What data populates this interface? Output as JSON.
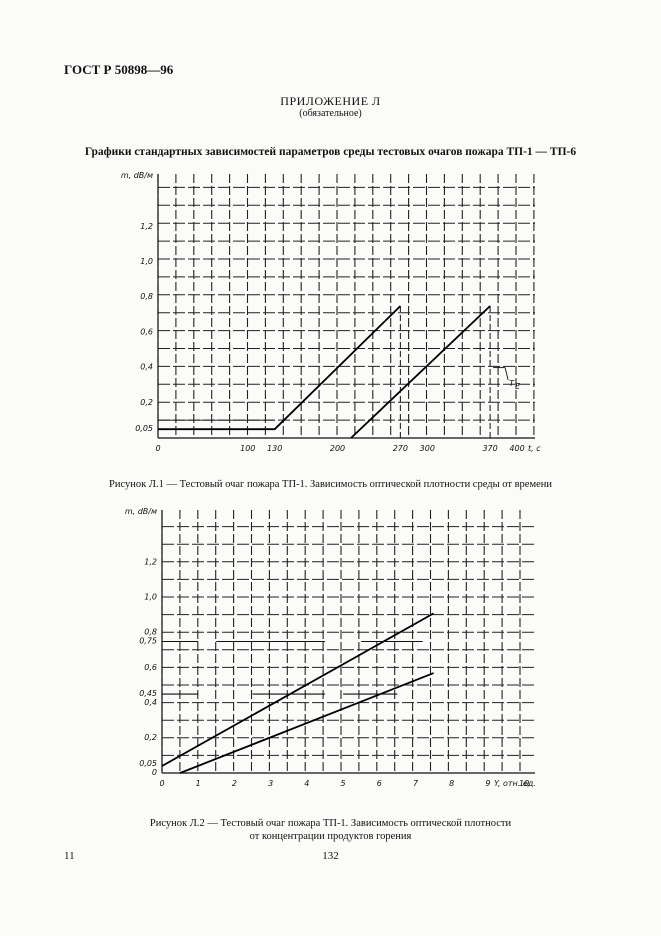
{
  "header": {
    "code": "ГОСТ Р 50898—96"
  },
  "appendix": {
    "title": "ПРИЛОЖЕНИЕ Л",
    "subtitle": "(обязательное)"
  },
  "main_title": "Графики стандартных зависимостей параметров среды тестовых очагов пожара ТП-1 — ТП-6",
  "figure1": {
    "caption": "Рисунок Л.1 — Тестовый очаг пожара ТП-1. Зависимость оптической плотности среды от времени",
    "annotation": "T_E"
  },
  "figure2": {
    "caption_line1": "Рисунок Л.2 — Тестовый очаг пожара ТП-1. Зависимость оптической плотности",
    "caption_line2": "от концентрации продуктов горения"
  },
  "page": {
    "left": "11",
    "center": "132"
  },
  "chart_data": [
    {
      "type": "line",
      "title": "",
      "ylabel": "m, dB/м",
      "xlabel": "t, c",
      "x_ticks": [
        "0",
        "100",
        "130",
        "200",
        "270",
        "300",
        "370",
        "400"
      ],
      "x_tick_values": [
        0,
        100,
        130,
        200,
        270,
        300,
        370,
        400
      ],
      "y_ticks": [
        "0,05",
        "0,2",
        "0,4",
        "0,6",
        "0,8",
        "1,0",
        "1,2"
      ],
      "y_tick_values": [
        0.05,
        0.2,
        0.4,
        0.6,
        0.8,
        1.0,
        1.2
      ],
      "xlim": [
        0,
        420
      ],
      "ylim": [
        0,
        1.5
      ],
      "grid": true,
      "series": [
        {
          "x": [
            0,
            130,
            270
          ],
          "y": [
            0.05,
            0.05,
            0.75
          ]
        },
        {
          "x": [
            215,
            370
          ],
          "y": [
            0,
            0.75
          ]
        }
      ]
    },
    {
      "type": "line",
      "title": "",
      "ylabel": "m, dB/м",
      "xlabel": "Y, отн. ед.",
      "x_ticks": [
        "0",
        "1",
        "2",
        "3",
        "4",
        "5",
        "6",
        "7",
        "8",
        "9",
        "10"
      ],
      "x_tick_values": [
        0,
        1,
        2,
        3,
        4,
        5,
        6,
        7,
        8,
        9,
        10
      ],
      "y_ticks": [
        "0",
        "0,05",
        "0,2",
        "0,4",
        "0,45",
        "0,6",
        "0,75",
        "0,8",
        "1,0",
        "1,2"
      ],
      "y_tick_values": [
        0,
        0.05,
        0.2,
        0.4,
        0.45,
        0.6,
        0.75,
        0.8,
        1.0,
        1.2
      ],
      "xlim": [
        0,
        10.3
      ],
      "ylim": [
        0,
        1.5
      ],
      "grid": true,
      "series": [
        {
          "x": [
            0,
            7.5
          ],
          "y": [
            0.04,
            0.91
          ]
        },
        {
          "x": [
            0.5,
            7.5
          ],
          "y": [
            0,
            0.57
          ]
        }
      ]
    }
  ]
}
